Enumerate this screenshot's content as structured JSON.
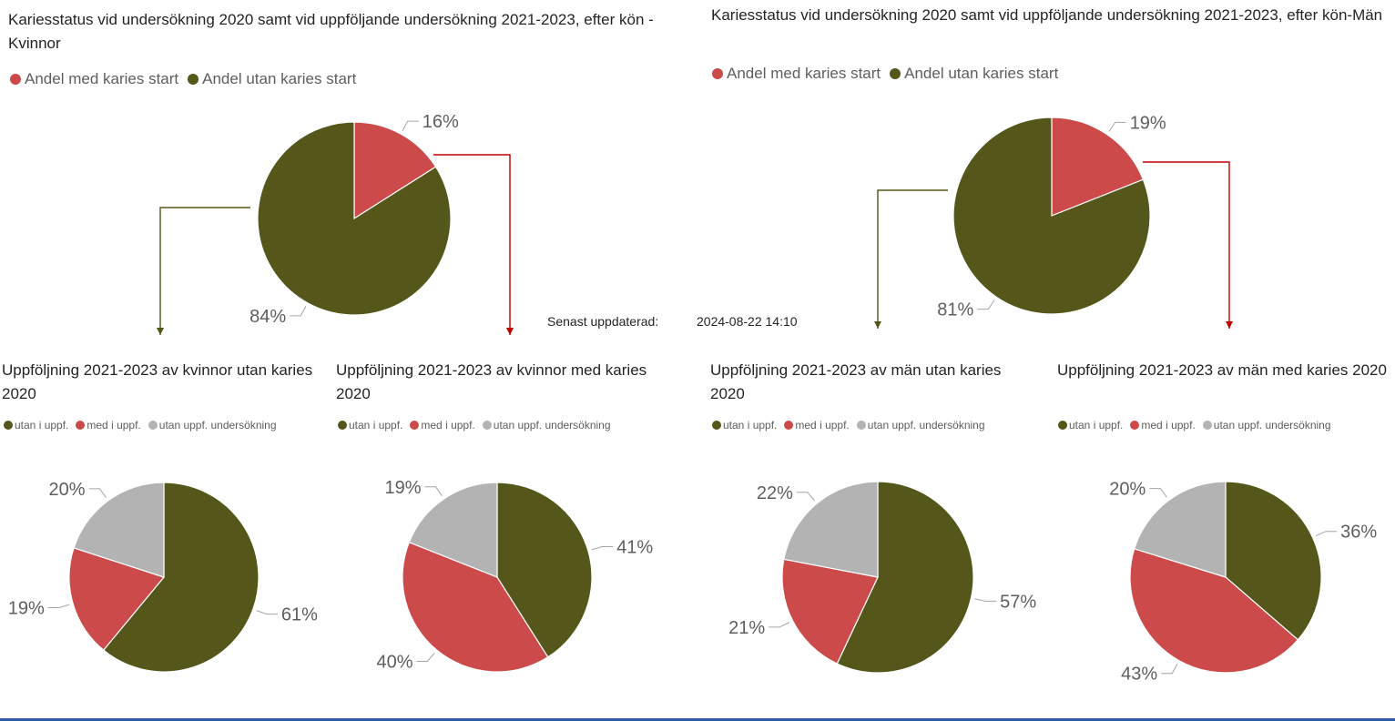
{
  "colors": {
    "med": "#cd4a4a",
    "utan": "#54561a",
    "uppf_none": "#b3b3b3",
    "arrow_green": "#54561a",
    "arrow_red": "#c00000",
    "label": "#605e5c"
  },
  "updated": {
    "label": "Senast uppdaterad:",
    "value": "2024-08-22 14:10"
  },
  "chart_data": [
    {
      "id": "women",
      "type": "pie",
      "title": "Kariesstatus vid undersökning 2020 samt vid uppföljande undersökning 2021-2023, efter kön - Kvinnor",
      "legend": [
        "Andel med karies start",
        "Andel utan karies start"
      ],
      "slices": [
        {
          "label": "Andel med karies start",
          "value": 16,
          "display": "16%",
          "color": "#cd4a4a"
        },
        {
          "label": "Andel utan karies start",
          "value": 84,
          "display": "84%",
          "color": "#54561a"
        }
      ]
    },
    {
      "id": "men",
      "type": "pie",
      "title": "Kariesstatus vid undersökning 2020 samt vid uppföljande undersökning 2021-2023, efter kön-Män",
      "legend": [
        "Andel med karies start",
        "Andel utan karies start"
      ],
      "slices": [
        {
          "label": "Andel med karies start",
          "value": 19,
          "display": "19%",
          "color": "#cd4a4a"
        },
        {
          "label": "Andel utan karies start",
          "value": 81,
          "display": "81%",
          "color": "#54561a"
        }
      ]
    },
    {
      "id": "w_utan",
      "type": "pie",
      "title": "Uppföljning 2021-2023 av kvinnor utan karies 2020",
      "legend": [
        "utan i uppf.",
        "med i uppf.",
        "utan uppf. undersökning"
      ],
      "slices": [
        {
          "label": "utan i uppf.",
          "value": 61,
          "display": "61%",
          "color": "#54561a"
        },
        {
          "label": "med i uppf.",
          "value": 19,
          "display": "19%",
          "color": "#cd4a4a"
        },
        {
          "label": "utan uppf. undersökning",
          "value": 20,
          "display": "20%",
          "color": "#b3b3b3"
        }
      ]
    },
    {
      "id": "w_med",
      "type": "pie",
      "title": "Uppföljning 2021-2023 av kvinnor med karies 2020",
      "legend": [
        "utan i uppf.",
        "med i uppf.",
        "utan uppf. undersökning"
      ],
      "slices": [
        {
          "label": "utan i uppf.",
          "value": 41,
          "display": "41%",
          "color": "#54561a"
        },
        {
          "label": "med i uppf.",
          "value": 40,
          "display": "40%",
          "color": "#cd4a4a"
        },
        {
          "label": "utan uppf. undersökning",
          "value": 19,
          "display": "19%",
          "color": "#b3b3b3"
        }
      ]
    },
    {
      "id": "m_utan",
      "type": "pie",
      "title": "Uppföljning 2021-2023 av män utan karies 2020",
      "legend": [
        "utan i uppf.",
        "med i uppf.",
        "utan uppf. undersökning"
      ],
      "slices": [
        {
          "label": "utan i uppf.",
          "value": 57,
          "display": "57%",
          "color": "#54561a"
        },
        {
          "label": "med i uppf.",
          "value": 21,
          "display": "21%",
          "color": "#cd4a4a"
        },
        {
          "label": "utan uppf. undersökning",
          "value": 22,
          "display": "22%",
          "color": "#b3b3b3"
        }
      ]
    },
    {
      "id": "m_med",
      "type": "pie",
      "title": "Uppföljning 2021-2023 av män med karies 2020",
      "legend": [
        "utan i uppf.",
        "med i uppf.",
        "utan uppf. undersökning"
      ],
      "slices": [
        {
          "label": "utan i uppf.",
          "value": 36,
          "display": "36%",
          "color": "#54561a"
        },
        {
          "label": "med i uppf.",
          "value": 43,
          "display": "43%",
          "color": "#cd4a4a"
        },
        {
          "label": "utan uppf. undersökning",
          "value": 20,
          "display": "20%",
          "color": "#b3b3b3"
        }
      ]
    }
  ]
}
